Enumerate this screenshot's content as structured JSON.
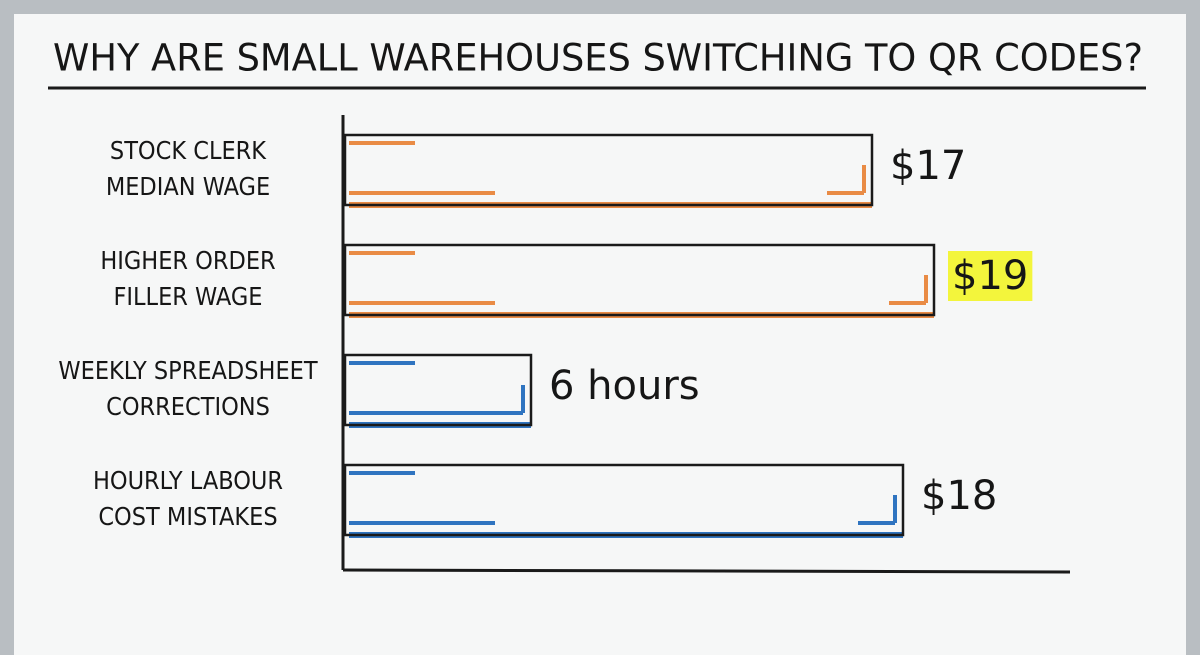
{
  "chart_data": {
    "type": "bar",
    "title": "WHY ARE SMALL WAREHOUSES SWITCHING TO QR CODES?",
    "categories": [
      [
        "STOCK CLERK",
        "MEDIAN WAGE"
      ],
      [
        "HIGHER ORDER",
        "FILLER WAGE"
      ],
      [
        "WEEKLY SPREADSHEET",
        "CORRECTIONS"
      ],
      [
        "HOURLY LABOUR",
        "COST MISTAKES"
      ]
    ],
    "values": [
      17,
      19,
      6,
      18
    ],
    "value_labels": [
      "$17",
      "$19",
      "6 hours",
      "$18"
    ],
    "colors": [
      "#e98b45",
      "#e98b45",
      "#2f74c0",
      "#2f74c0"
    ],
    "value_label_backgrounds": [
      null,
      "#f3f53c",
      null,
      null
    ]
  }
}
